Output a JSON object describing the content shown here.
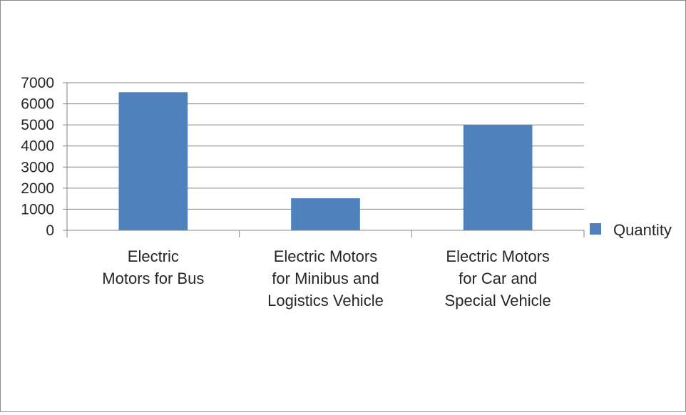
{
  "chart_data": {
    "type": "bar",
    "title": "",
    "xlabel": "",
    "ylabel": "",
    "categories": [
      [
        "Electric",
        "Motors for Bus"
      ],
      [
        "Electric Motors",
        "for Minibus and",
        "Logistics Vehicle"
      ],
      [
        "Electric Motors",
        "for Car and",
        "Special Vehicle"
      ]
    ],
    "series": [
      {
        "name": "Quantity",
        "values": [
          6550,
          1520,
          5000
        ],
        "color": "#4f81bd"
      }
    ],
    "ylim": [
      0,
      7000
    ],
    "yticks": [
      "0",
      "1000",
      "2000",
      "3000",
      "4000",
      "5000",
      "6000",
      "7000"
    ],
    "grid": true,
    "legend": "right"
  }
}
